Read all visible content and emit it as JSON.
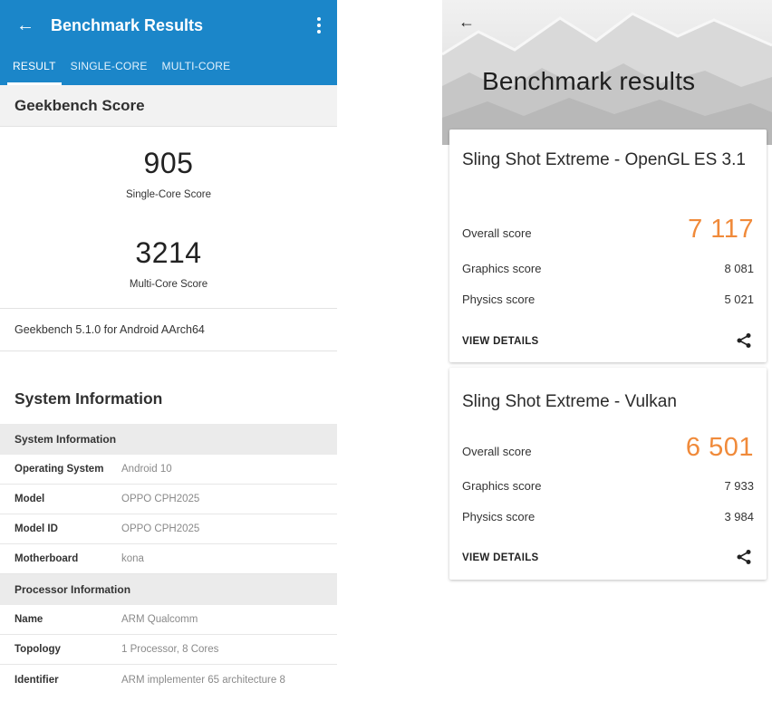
{
  "geekbench": {
    "app_bar": {
      "title": "Benchmark Results"
    },
    "tabs": [
      {
        "label": "RESULT",
        "active": true
      },
      {
        "label": "SINGLE-CORE",
        "active": false
      },
      {
        "label": "MULTI-CORE",
        "active": false
      }
    ],
    "score_section_title": "Geekbench Score",
    "single_core": {
      "score": "905",
      "label": "Single-Core Score"
    },
    "multi_core": {
      "score": "3214",
      "label": "Multi-Core Score"
    },
    "version": "Geekbench 5.1.0 for Android AArch64",
    "system_title": "System Information",
    "system_group": "System Information",
    "system_rows": [
      {
        "key": "Operating System",
        "value": "Android 10"
      },
      {
        "key": "Model",
        "value": "OPPO CPH2025"
      },
      {
        "key": "Model ID",
        "value": "OPPO CPH2025"
      },
      {
        "key": "Motherboard",
        "value": "kona"
      }
    ],
    "processor_group": "Processor Information",
    "processor_rows": [
      {
        "key": "Name",
        "value": "ARM Qualcomm"
      },
      {
        "key": "Topology",
        "value": "1 Processor, 8 Cores"
      },
      {
        "key": "Identifier",
        "value": "ARM implementer 65 architecture 8"
      }
    ],
    "colors": {
      "app_bar": "#1b86c9"
    }
  },
  "threedmark": {
    "title": "Benchmark results",
    "cards": [
      {
        "title": "Sling Shot Extreme - OpenGL ES 3.1",
        "overall_label": "Overall score",
        "overall_value": "7 117",
        "graphics_label": "Graphics score",
        "graphics_value": "8 081",
        "physics_label": "Physics score",
        "physics_value": "5 021",
        "details_label": "VIEW DETAILS"
      },
      {
        "title": "Sling Shot Extreme - Vulkan",
        "overall_label": "Overall score",
        "overall_value": "6 501",
        "graphics_label": "Graphics score",
        "graphics_value": "7 933",
        "physics_label": "Physics score",
        "physics_value": "3 984",
        "details_label": "VIEW DETAILS"
      }
    ],
    "colors": {
      "overall_score": "#f08a3a"
    }
  }
}
